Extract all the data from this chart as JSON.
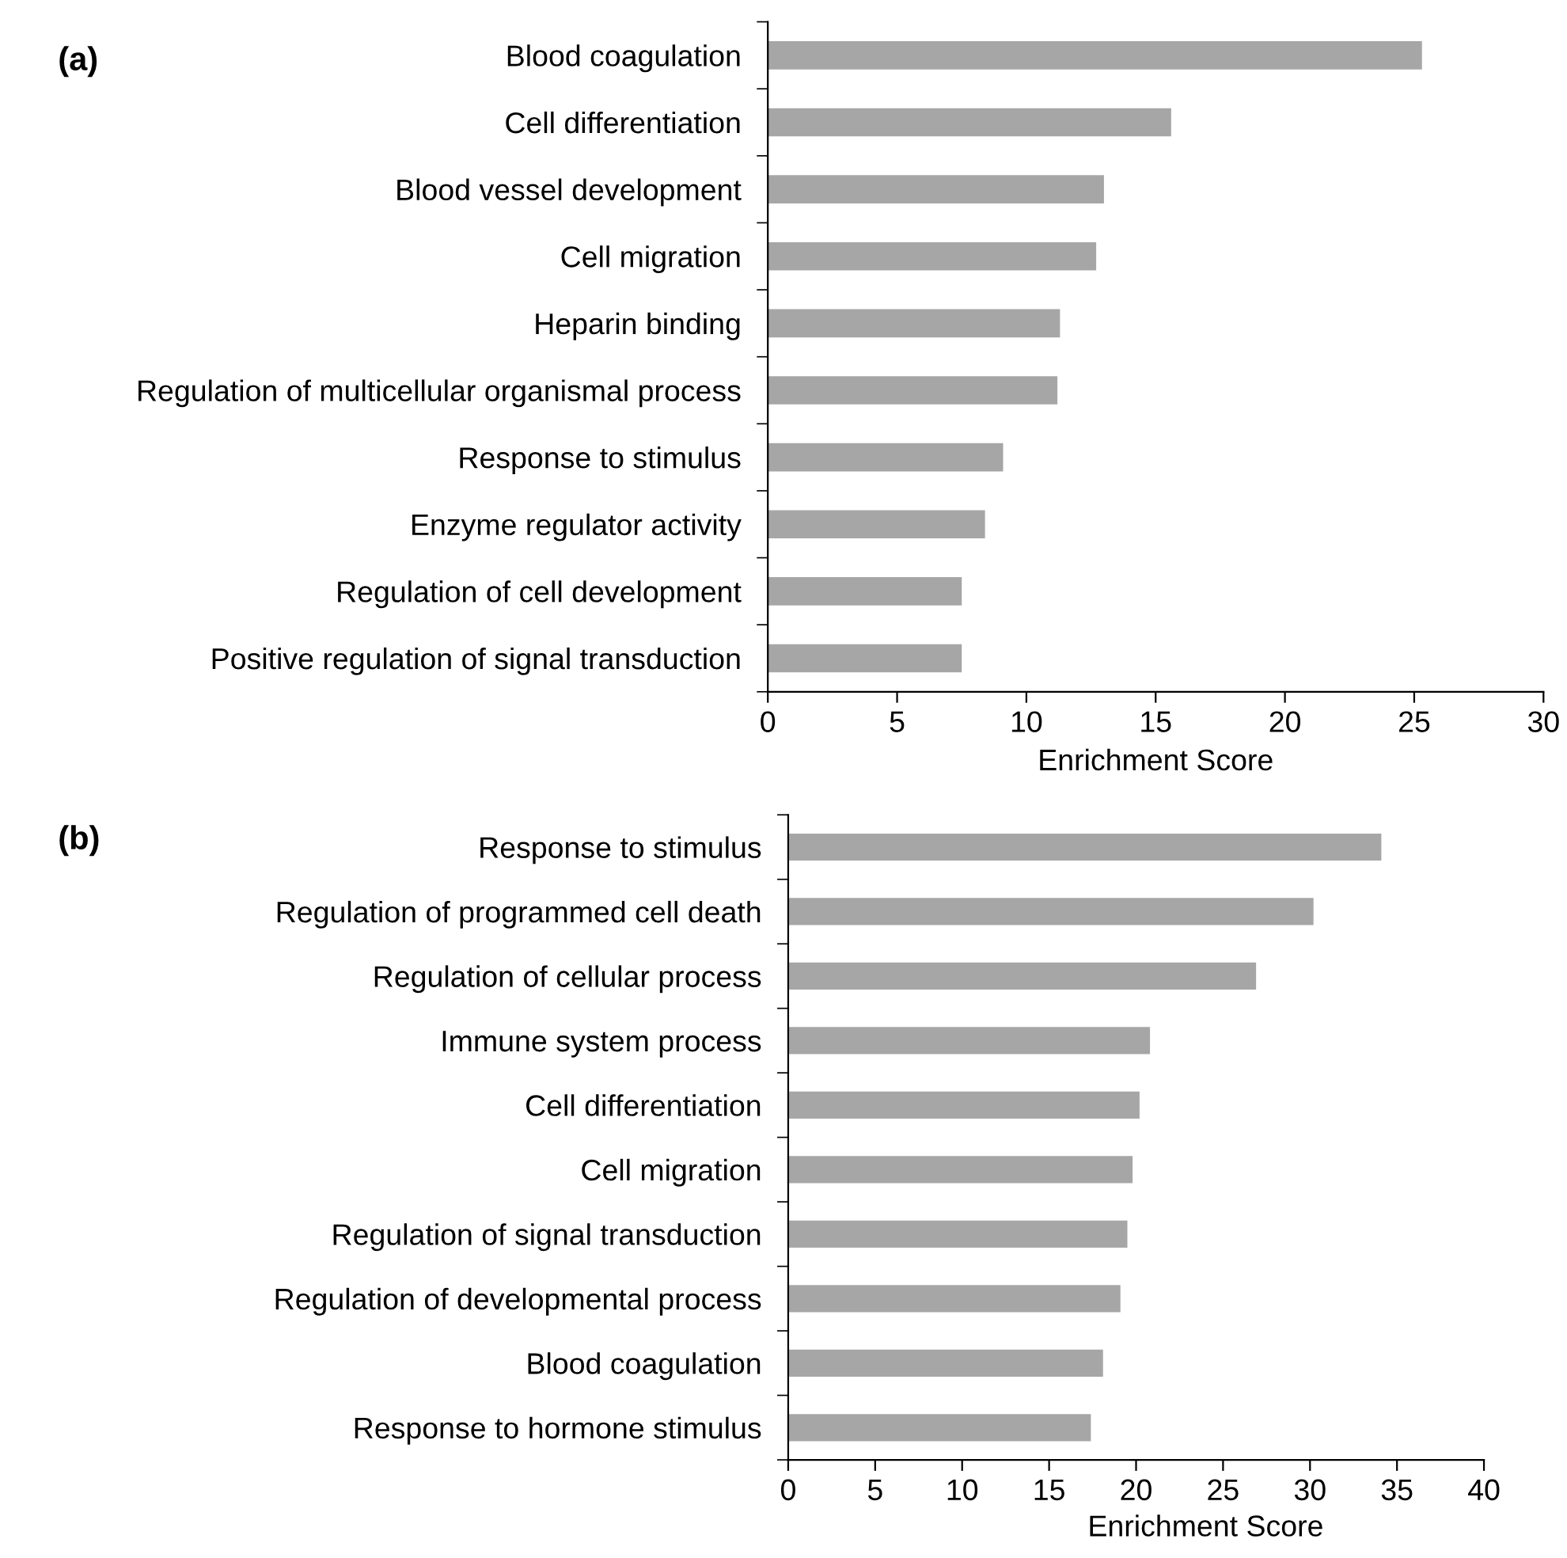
{
  "chart_data": [
    {
      "type": "bar",
      "orientation": "horizontal",
      "title": "(a)",
      "xlabel": "Enrichment Score",
      "categories": [
        "Blood coagulation",
        "Cell differentiation",
        "Blood vessel development",
        "Cell migration",
        "Heparin binding",
        "Regulation of multicellular organismal process",
        "Response to stimulus",
        "Enzyme regulator activity",
        "Regulation of cell development",
        "Positive regulation of signal transduction"
      ],
      "values": [
        25.3,
        15.6,
        13.0,
        12.7,
        11.3,
        11.2,
        9.1,
        8.4,
        7.5,
        7.5
      ],
      "color": "#a6a6a6",
      "xlim": [
        0,
        30
      ],
      "xticks": [
        0,
        5,
        10,
        15,
        20,
        25,
        30
      ],
      "grid": false,
      "legend": false
    },
    {
      "type": "bar",
      "orientation": "horizontal",
      "title": "(b)",
      "xlabel": "Enrichment Score",
      "categories": [
        "Response to stimulus",
        "Regulation of programmed cell death",
        "Regulation of cellular process",
        "Immune system process",
        "Cell differentiation",
        "Cell migration",
        "Regulation of signal transduction",
        "Regulation of developmental process",
        "Blood coagulation",
        "Response to hormone stimulus"
      ],
      "values": [
        34.1,
        30.2,
        26.9,
        20.8,
        20.2,
        19.8,
        19.5,
        19.1,
        18.1,
        17.4
      ],
      "color": "#a6a6a6",
      "xlim": [
        0,
        40
      ],
      "xticks": [
        0,
        5,
        10,
        15,
        20,
        25,
        30,
        35,
        40
      ],
      "grid": false,
      "legend": false
    }
  ]
}
